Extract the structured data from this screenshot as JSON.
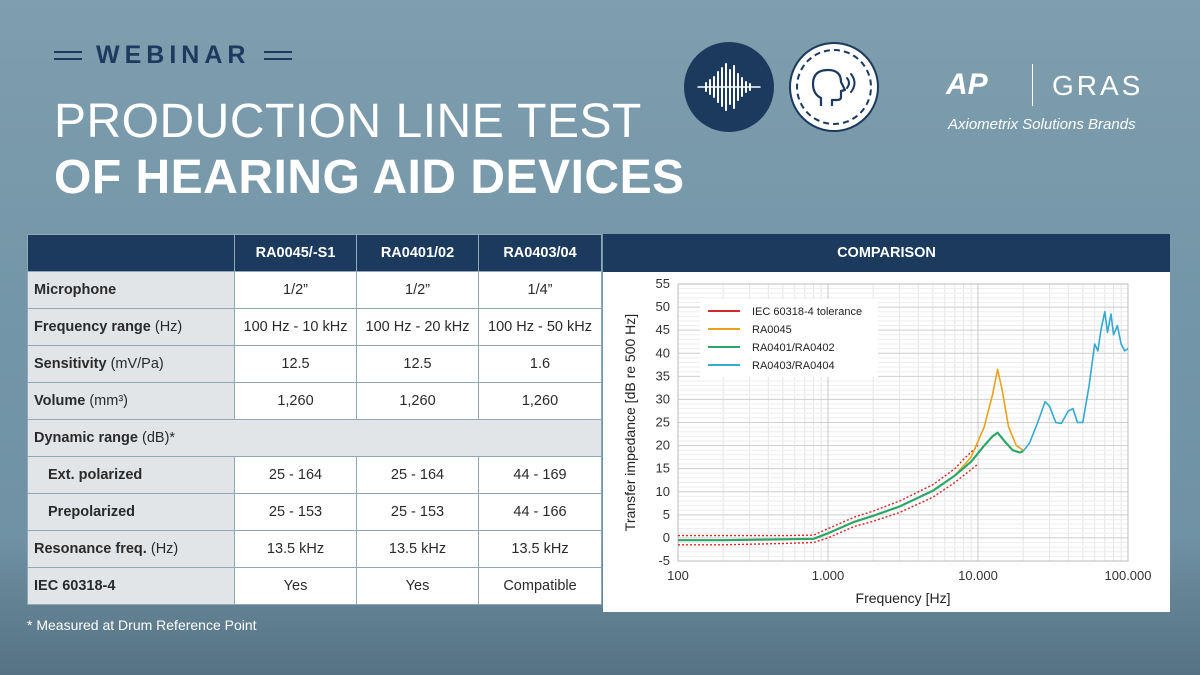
{
  "header": {
    "label": "WEBINAR",
    "title_line1": "PRODUCTION LINE TEST",
    "title_line2": "OF HEARING AID DEVICES",
    "icons": [
      "sound-wave-icon",
      "listening-head-icon"
    ]
  },
  "logo": {
    "left": "AP",
    "right": "GRAS",
    "tagline": "Axiometrix Solutions Brands"
  },
  "table": {
    "columns": [
      "RA0045/-S1",
      "RA0401/02",
      "RA0403/04"
    ],
    "rows": [
      {
        "label": "Microphone",
        "unit": "",
        "values": [
          "1/2”",
          "1/2”",
          "1/4”"
        ]
      },
      {
        "label": "Frequency range",
        "unit": "(Hz)",
        "values": [
          "100 Hz - 10 kHz",
          "100 Hz - 20 kHz",
          "100 Hz - 50 kHz"
        ]
      },
      {
        "label": "Sensitivity",
        "unit": "(mV/Pa)",
        "values": [
          "12.5",
          "12.5",
          "1.6"
        ]
      },
      {
        "label": "Volume",
        "unit": "(mm³)",
        "values": [
          "1,260",
          "1,260",
          "1,260"
        ]
      },
      {
        "label": "Dynamic range",
        "unit": "(dB)*",
        "values": []
      },
      {
        "label": "Ext. polarized",
        "unit": "",
        "values": [
          "25 - 164",
          "25 - 164",
          "44 - 169"
        ]
      },
      {
        "label": "Prepolarized",
        "unit": "",
        "values": [
          "25 - 153",
          "25 - 153",
          "44 - 166"
        ]
      },
      {
        "label": "Resonance freq.",
        "unit": "(Hz)",
        "values": [
          "13.5 kHz",
          "13.5 kHz",
          "13.5 kHz"
        ]
      },
      {
        "label": "IEC 60318-4",
        "unit": "",
        "values": [
          "Yes",
          "Yes",
          "Compatible"
        ]
      }
    ],
    "footnote": "* Measured at Drum Reference Point"
  },
  "comparison": {
    "heading": "COMPARISON"
  },
  "chart_data": {
    "type": "line",
    "title": "",
    "xlabel": "Frequency [Hz]",
    "ylabel": "Transfer impedance [dB re 500 Hz]",
    "xscale": "log",
    "xlim": [
      100,
      100000
    ],
    "ylim": [
      -5,
      55
    ],
    "xticks": [
      100,
      1000,
      10000,
      100000
    ],
    "xtick_labels": [
      "100",
      "1.000",
      "10.000",
      "100.000"
    ],
    "yticks": [
      -5,
      0,
      5,
      10,
      15,
      20,
      25,
      30,
      35,
      40,
      45,
      50,
      55
    ],
    "grid": true,
    "legend_position": "top-left",
    "series": [
      {
        "name": "IEC 60318-4 tolerance",
        "color": "#d62728",
        "style": "dashed-pair",
        "x": [
          100,
          200,
          500,
          800,
          1000,
          1500,
          2000,
          3000,
          5000,
          7000,
          8000,
          10000
        ],
        "upper": [
          0.5,
          0.5,
          0.5,
          0.6,
          2.0,
          4.5,
          5.8,
          8.0,
          11.5,
          15.0,
          17.0,
          20.0
        ],
        "lower": [
          -1.5,
          -1.5,
          -1.2,
          -1.0,
          0.0,
          2.5,
          3.6,
          5.5,
          8.8,
          12.0,
          13.5,
          16.0
        ]
      },
      {
        "name": "RA0045",
        "color": "#e8a21c",
        "x": [
          100,
          200,
          500,
          800,
          1000,
          1500,
          2000,
          3000,
          5000,
          7000,
          9000,
          11000,
          12500,
          13500,
          14500,
          16000,
          18000,
          20000
        ],
        "y": [
          -0.5,
          -0.5,
          -0.3,
          -0.2,
          1.0,
          3.5,
          4.8,
          6.8,
          10.2,
          13.5,
          17.5,
          24.0,
          31.0,
          36.5,
          32.0,
          24.0,
          20.0,
          19.0
        ]
      },
      {
        "name": "RA0401/RA0402",
        "color": "#2ea66a",
        "x": [
          100,
          200,
          500,
          800,
          1000,
          1500,
          2000,
          3000,
          5000,
          7000,
          9000,
          11000,
          12500,
          13500,
          15000,
          17000,
          19000,
          20000
        ],
        "y": [
          -0.5,
          -0.5,
          -0.3,
          -0.2,
          1.0,
          3.5,
          4.8,
          6.8,
          10.2,
          13.5,
          16.5,
          20.0,
          22.0,
          22.8,
          21.0,
          19.0,
          18.5,
          18.8
        ]
      },
      {
        "name": "RA0403/RA0404",
        "color": "#35a8d1",
        "x": [
          20000,
          22000,
          25000,
          28000,
          30000,
          33000,
          36000,
          40000,
          43000,
          46000,
          50000,
          55000,
          60000,
          63000,
          66000,
          70000,
          73000,
          77000,
          80000,
          85000,
          90000,
          95000,
          100000
        ],
        "y": [
          18.8,
          20.5,
          25.0,
          29.5,
          28.5,
          25.0,
          24.8,
          27.5,
          28.0,
          25.0,
          25.0,
          33.0,
          42.0,
          40.5,
          45.0,
          49.0,
          44.5,
          48.5,
          44.0,
          46.0,
          42.0,
          40.5,
          41.0
        ]
      }
    ]
  }
}
